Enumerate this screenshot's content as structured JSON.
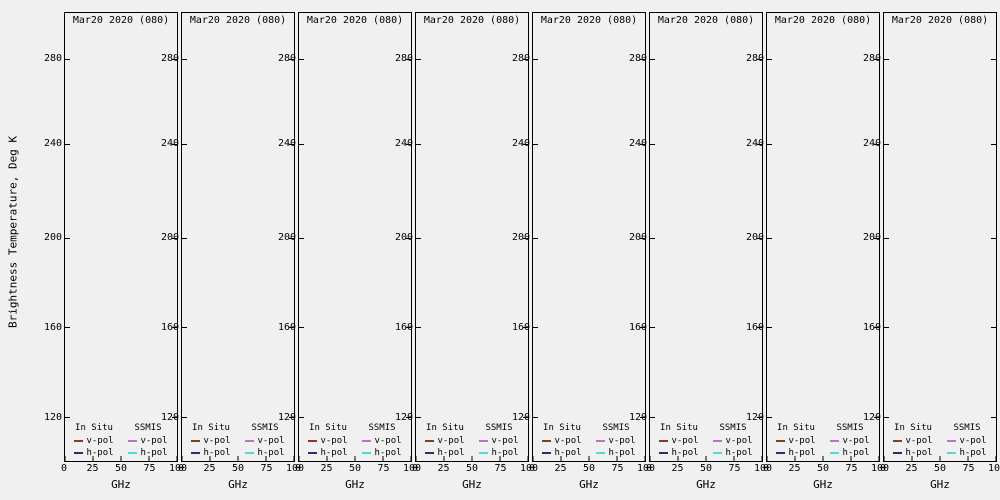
{
  "figure": {
    "background": "#f0f0f0",
    "ylabel": "Brightness Temperature, Deg K",
    "xlabel": "GHz",
    "panel_title": "Mar20 2020 (080)",
    "y_tick_labels": [
      "280",
      "240",
      "200",
      "160",
      "120"
    ],
    "x_tick_labels": [
      "0",
      "25",
      "50",
      "75",
      "100"
    ],
    "legend": {
      "insitu_header": "In Situ",
      "ssmis_header": "SSMIS",
      "vpol_label": "v-pol",
      "hpol_label": "h-pol"
    },
    "colors": {
      "insitu_vpol": "#8b3626",
      "insitu_hpol": "#2e2e66",
      "ssmis_vpol": "#c070c0",
      "ssmis_hpol": "#55d8d8",
      "axis": "#000000"
    }
  },
  "chart_data": {
    "type": "line",
    "panels": 8,
    "panel_title": "Mar20 2020 (080)",
    "xlabel": "GHz",
    "ylabel": "Brightness Temperature, Deg K",
    "xlim": [
      0,
      100
    ],
    "ylim": [
      100,
      300
    ],
    "x_ticks": [
      0,
      25,
      50,
      75,
      100
    ],
    "y_ticks": [
      120,
      160,
      200,
      240,
      280
    ],
    "grid": false,
    "legend_position": "bottom-inside",
    "legend": {
      "groups": [
        {
          "name": "In Situ",
          "entries": [
            {
              "label": "v-pol",
              "color": "#8b3626"
            },
            {
              "label": "h-pol",
              "color": "#2e2e66"
            }
          ]
        },
        {
          "name": "SSMIS",
          "entries": [
            {
              "label": "v-pol",
              "color": "#c070c0"
            },
            {
              "label": "h-pol",
              "color": "#55d8d8"
            }
          ]
        }
      ]
    },
    "series": []
  }
}
